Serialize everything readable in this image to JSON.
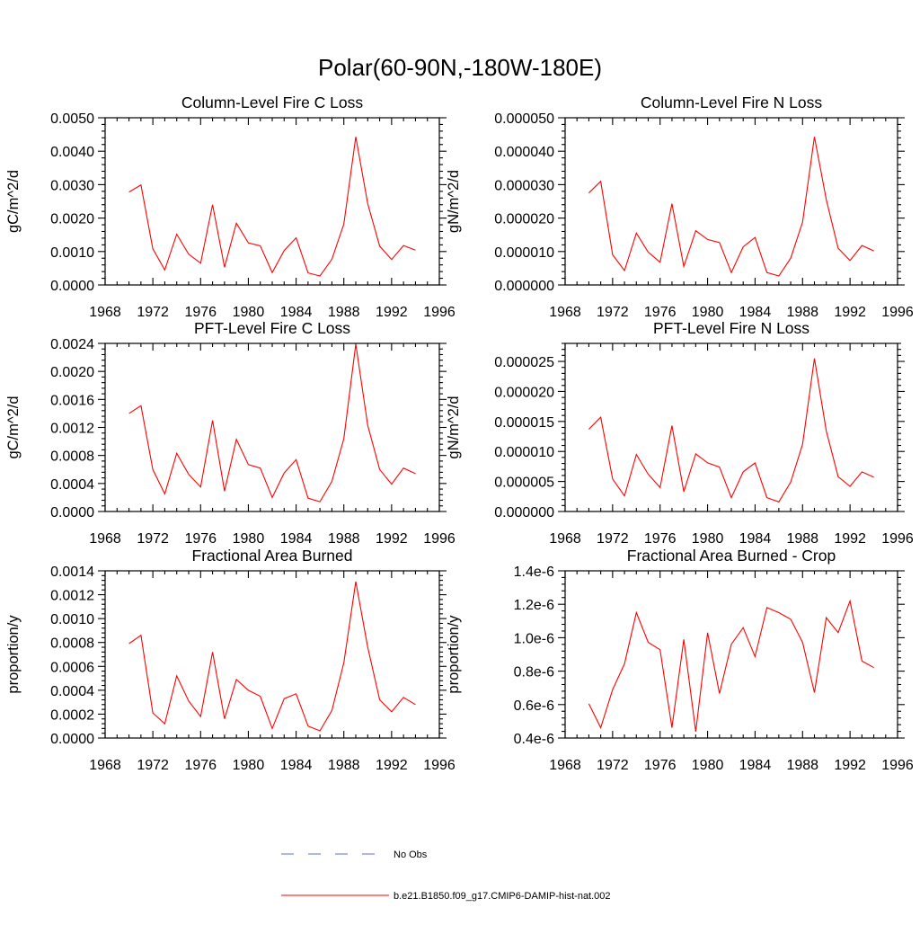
{
  "title": "Polar(60-90N,-180W-180E)",
  "colors": {
    "model": "#ff0000",
    "obs": "#5b6bd6"
  },
  "legend": {
    "obs_label": "No Obs",
    "model_label": "b.e21.B1850.f09_g17.CMIP6-DAMIP-hist-nat.002"
  },
  "chart_data": [
    {
      "type": "line",
      "title": "Column-Level Fire C Loss",
      "ylabel": "gC/m^2/d",
      "xlim": [
        1968,
        1996
      ],
      "xticks": [
        "1968",
        "1972",
        "1976",
        "1980",
        "1984",
        "1988",
        "1992",
        "1996"
      ],
      "ylim": [
        0,
        0.005
      ],
      "yticks": [
        "0.0000",
        "0.0010",
        "0.0020",
        "0.0030",
        "0.0040",
        "0.0050"
      ],
      "x": [
        1970,
        1971,
        1972,
        1973,
        1974,
        1975,
        1976,
        1977,
        1978,
        1979,
        1980,
        1981,
        1982,
        1983,
        1984,
        1985,
        1986,
        1987,
        1988,
        1989,
        1990,
        1991,
        1992,
        1993,
        1994
      ],
      "series": [
        {
          "values": [
            0.00278,
            0.00299,
            0.00108,
            0.00045,
            0.00152,
            0.00092,
            0.00065,
            0.0024,
            0.00053,
            0.00185,
            0.00126,
            0.00117,
            0.00037,
            0.00103,
            0.00141,
            0.00036,
            0.00027,
            0.00077,
            0.00182,
            0.00443,
            0.00243,
            0.00116,
            0.00076,
            0.00118,
            0.00104
          ]
        }
      ]
    },
    {
      "type": "line",
      "title": "Column-Level Fire N Loss",
      "ylabel": "gN/m^2/d",
      "xlim": [
        1968,
        1996
      ],
      "xticks": [
        "1968",
        "1972",
        "1976",
        "1980",
        "1984",
        "1988",
        "1992",
        "1996"
      ],
      "ylim": [
        0,
        5e-05
      ],
      "yticks": [
        "0.000000",
        "0.000010",
        "0.000020",
        "0.000030",
        "0.000040",
        "0.000050"
      ],
      "x": [
        1970,
        1971,
        1972,
        1973,
        1974,
        1975,
        1976,
        1977,
        1978,
        1979,
        1980,
        1981,
        1982,
        1983,
        1984,
        1985,
        1986,
        1987,
        1988,
        1989,
        1990,
        1991,
        1992,
        1993,
        1994
      ],
      "series": [
        {
          "values": [
            2.75e-05,
            3.1e-05,
            9e-06,
            4.3e-06,
            1.55e-05,
            9.8e-06,
            6.8e-06,
            2.43e-05,
            5.5e-06,
            1.62e-05,
            1.36e-05,
            1.27e-05,
            3.7e-06,
            1.14e-05,
            1.42e-05,
            3.7e-06,
            2.7e-06,
            8e-06,
            1.88e-05,
            4.43e-05,
            2.55e-05,
            1.1e-05,
            7.3e-06,
            1.18e-05,
            1.02e-05
          ]
        }
      ]
    },
    {
      "type": "line",
      "title": "PFT-Level Fire C Loss",
      "ylabel": "gC/m^2/d",
      "xlim": [
        1968,
        1996
      ],
      "xticks": [
        "1968",
        "1972",
        "1976",
        "1980",
        "1984",
        "1988",
        "1992",
        "1996"
      ],
      "ylim": [
        0,
        0.0024
      ],
      "yticks": [
        "0.0000",
        "0.0004",
        "0.0008",
        "0.0012",
        "0.0016",
        "0.0020",
        "0.0024"
      ],
      "x": [
        1970,
        1971,
        1972,
        1973,
        1974,
        1975,
        1976,
        1977,
        1978,
        1979,
        1980,
        1981,
        1982,
        1983,
        1984,
        1985,
        1986,
        1987,
        1988,
        1989,
        1990,
        1991,
        1992,
        1993,
        1994
      ],
      "series": [
        {
          "values": [
            0.0014,
            0.00151,
            0.0006,
            0.00025,
            0.00083,
            0.00053,
            0.00035,
            0.0013,
            0.00029,
            0.00103,
            0.00067,
            0.00062,
            0.0002,
            0.00055,
            0.00074,
            0.00019,
            0.00014,
            0.00043,
            0.00104,
            0.00239,
            0.00123,
            0.0006,
            0.00039,
            0.00062,
            0.00054
          ]
        }
      ]
    },
    {
      "type": "line",
      "title": "PFT-Level Fire N Loss",
      "ylabel": "gN/m^2/d",
      "xlim": [
        1968,
        1996
      ],
      "xticks": [
        "1968",
        "1972",
        "1976",
        "1980",
        "1984",
        "1988",
        "1992",
        "1996"
      ],
      "ylim": [
        0,
        2.8e-05
      ],
      "yticks": [
        "0.000000",
        "0.000005",
        "0.000010",
        "0.000015",
        "0.000020",
        "0.000025"
      ],
      "ytick_values": [
        0,
        5e-06,
        1e-05,
        1.5e-05,
        2e-05,
        2.5e-05
      ],
      "x": [
        1970,
        1971,
        1972,
        1973,
        1974,
        1975,
        1976,
        1977,
        1978,
        1979,
        1980,
        1981,
        1982,
        1983,
        1984,
        1985,
        1986,
        1987,
        1988,
        1989,
        1990,
        1991,
        1992,
        1993,
        1994
      ],
      "series": [
        {
          "values": [
            1.37e-05,
            1.57e-05,
            5.4e-06,
            2.6e-06,
            9.5e-06,
            6.2e-06,
            4e-06,
            1.43e-05,
            3.3e-06,
            9.6e-06,
            8.1e-06,
            7.4e-06,
            2.3e-06,
            6.6e-06,
            8.1e-06,
            2.3e-06,
            1.6e-06,
            4.9e-06,
            1.12e-05,
            2.55e-05,
            1.34e-05,
            5.8e-06,
            4.2e-06,
            6.6e-06,
            5.7e-06
          ]
        }
      ]
    },
    {
      "type": "line",
      "title": "Fractional Area Burned",
      "ylabel": "proportion/y",
      "xlim": [
        1968,
        1996
      ],
      "xticks": [
        "1968",
        "1972",
        "1976",
        "1980",
        "1984",
        "1988",
        "1992",
        "1996"
      ],
      "ylim": [
        0,
        0.0014
      ],
      "yticks": [
        "0.0000",
        "0.0002",
        "0.0004",
        "0.0006",
        "0.0008",
        "0.0010",
        "0.0012",
        "0.0014"
      ],
      "x": [
        1970,
        1971,
        1972,
        1973,
        1974,
        1975,
        1976,
        1977,
        1978,
        1979,
        1980,
        1981,
        1982,
        1983,
        1984,
        1985,
        1986,
        1987,
        1988,
        1989,
        1990,
        1991,
        1992,
        1993,
        1994
      ],
      "series": [
        {
          "values": [
            0.00079,
            0.00086,
            0.00021,
            0.00012,
            0.00052,
            0.00031,
            0.00018,
            0.00072,
            0.00016,
            0.00049,
            0.0004,
            0.00035,
            8e-05,
            0.00033,
            0.00037,
            0.0001,
            6e-05,
            0.00023,
            0.00063,
            0.00131,
            0.00076,
            0.00032,
            0.00022,
            0.00034,
            0.00028
          ]
        }
      ]
    },
    {
      "type": "line",
      "title": "Fractional Area Burned - Crop",
      "ylabel": "proportion/y",
      "xlim": [
        1968,
        1996
      ],
      "xticks": [
        "1968",
        "1972",
        "1976",
        "1980",
        "1984",
        "1988",
        "1992",
        "1996"
      ],
      "ylim": [
        4e-07,
        1.4e-06
      ],
      "yticks": [
        "0.4e-6",
        "0.6e-6",
        "0.8e-6",
        "1.0e-6",
        "1.2e-6",
        "1.4e-6"
      ],
      "x": [
        1970,
        1971,
        1972,
        1973,
        1974,
        1975,
        1976,
        1977,
        1978,
        1979,
        1980,
        1981,
        1982,
        1983,
        1984,
        1985,
        1986,
        1987,
        1988,
        1989,
        1990,
        1991,
        1992,
        1993,
        1994
      ],
      "series": [
        {
          "values": [
            6.05e-07,
            4.62e-07,
            6.9e-07,
            8.44e-07,
            1.15e-06,
            9.72e-07,
            9.28e-07,
            4.62e-07,
            9.9e-07,
            4.38e-07,
            1.03e-06,
            6.66e-07,
            9.61e-07,
            1.06e-06,
            8.87e-07,
            1.18e-06,
            1.15e-06,
            1.11e-06,
            9.72e-07,
            6.72e-07,
            1.12e-06,
            1.03e-06,
            1.22e-06,
            8.6e-07,
            8.21e-07
          ]
        }
      ]
    }
  ]
}
